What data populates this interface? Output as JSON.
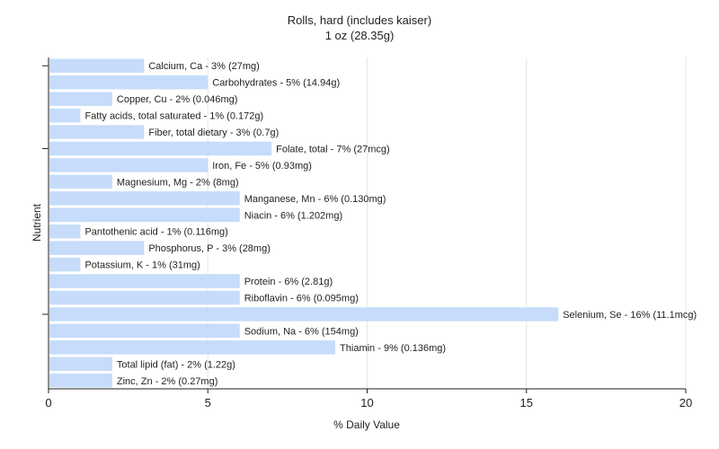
{
  "chart_data": {
    "type": "bar",
    "orientation": "horizontal",
    "title": "Rolls, hard (includes kaiser)",
    "subtitle": "1 oz (28.35g)",
    "xlabel": "% Daily Value",
    "ylabel": "Nutrient",
    "xlim": [
      0,
      20
    ],
    "xticks": [
      "0",
      "5",
      "10",
      "15",
      "20"
    ],
    "grid": true,
    "bar_color": "#c6dcfa",
    "categories": [
      "Calcium, Ca",
      "Carbohydrates",
      "Copper, Cu",
      "Fatty acids, total saturated",
      "Fiber, total dietary",
      "Folate, total",
      "Iron, Fe",
      "Magnesium, Mg",
      "Manganese, Mn",
      "Niacin",
      "Pantothenic acid",
      "Phosphorus, P",
      "Potassium, K",
      "Protein",
      "Riboflavin",
      "Selenium, Se",
      "Sodium, Na",
      "Thiamin",
      "Total lipid (fat)",
      "Zinc, Zn"
    ],
    "values": [
      3,
      5,
      2,
      1,
      3,
      7,
      5,
      2,
      6,
      6,
      1,
      3,
      1,
      6,
      6,
      16,
      6,
      9,
      2,
      2
    ],
    "labels": [
      "Calcium, Ca - 3% (27mg)",
      "Carbohydrates - 5% (14.94g)",
      "Copper, Cu - 2% (0.046mg)",
      "Fatty acids, total saturated - 1% (0.172g)",
      "Fiber, total dietary - 3% (0.7g)",
      "Folate, total - 7% (27mcg)",
      "Iron, Fe - 5% (0.93mg)",
      "Magnesium, Mg - 2% (8mg)",
      "Manganese, Mn - 6% (0.130mg)",
      "Niacin - 6% (1.202mg)",
      "Pantothenic acid - 1% (0.116mg)",
      "Phosphorus, P - 3% (28mg)",
      "Potassium, K - 1% (31mg)",
      "Protein - 6% (2.81g)",
      "Riboflavin - 6% (0.095mg)",
      "Selenium, Se - 16% (11.1mcg)",
      "Sodium, Na - 6% (154mg)",
      "Thiamin - 9% (0.136mg)",
      "Total lipid (fat) - 2% (1.22g)",
      "Zinc, Zn - 2% (0.27mg)"
    ]
  }
}
